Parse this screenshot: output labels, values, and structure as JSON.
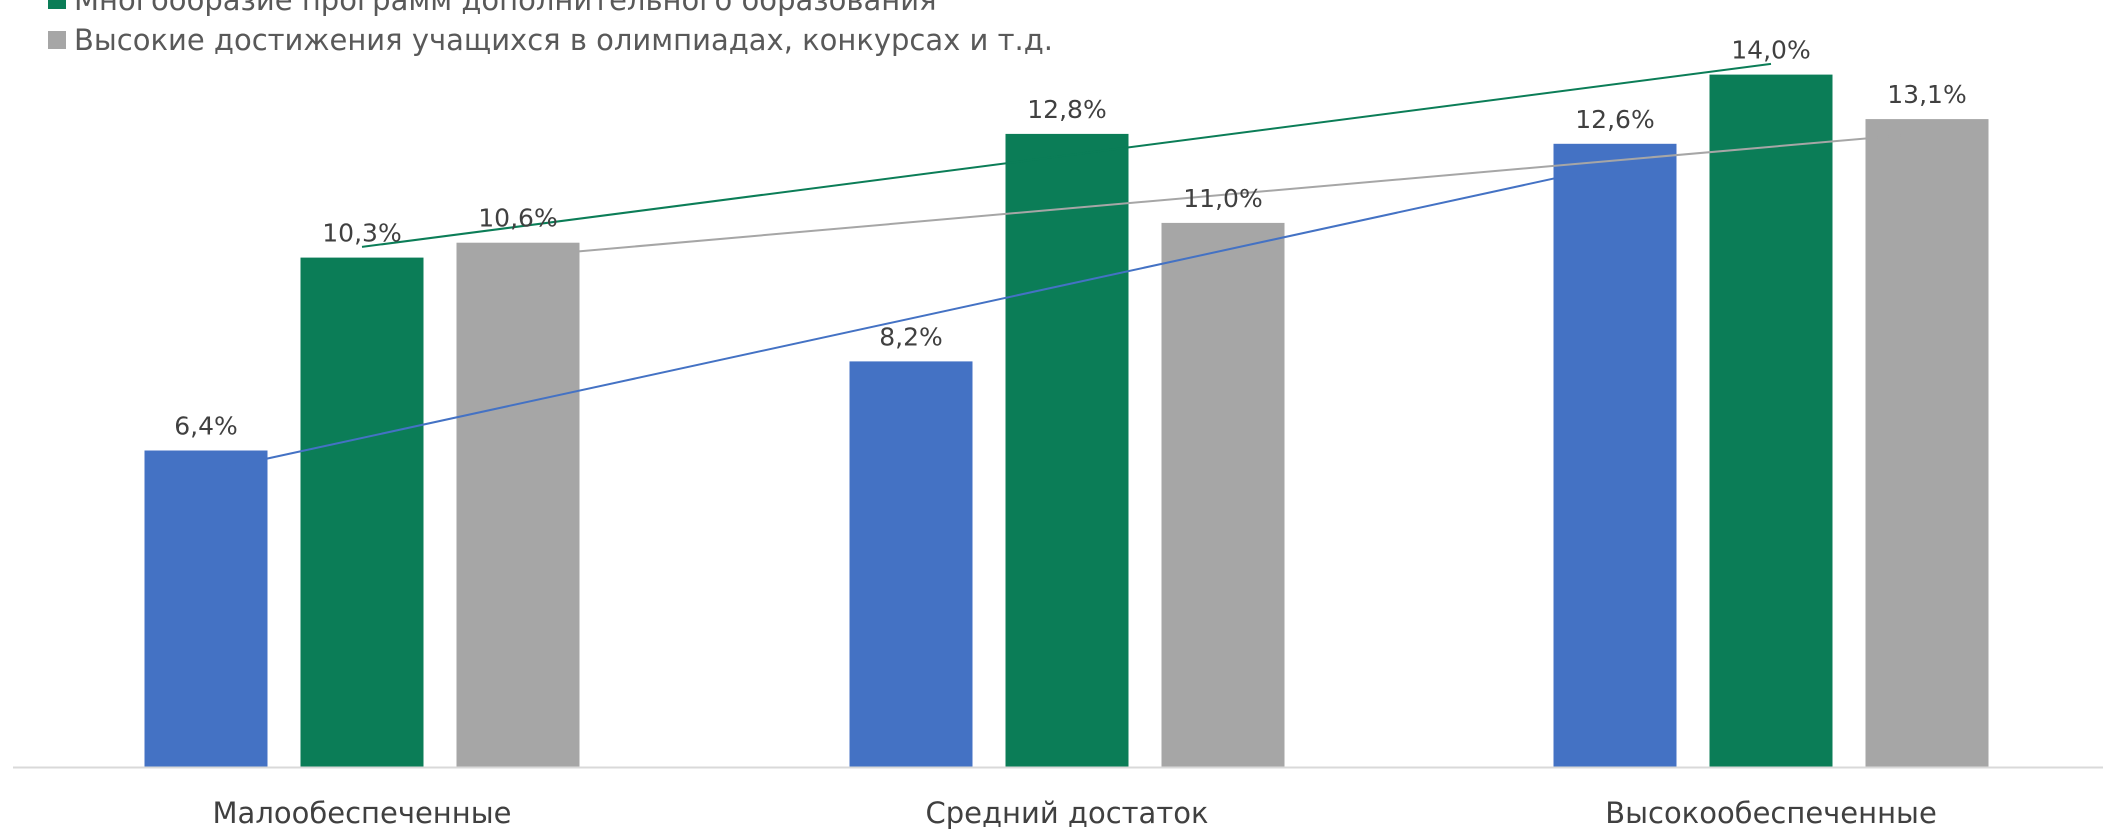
{
  "chart_data": {
    "type": "bar",
    "categories": [
      "Малообеспеченные",
      "Средний достаток",
      "Высокообеспеченные"
    ],
    "series": [
      {
        "name": "",
        "color": "#4472C4",
        "values": [
          6.4,
          8.2,
          12.6
        ],
        "labels": [
          "6,4%",
          "8,2%",
          "12,6%"
        ]
      },
      {
        "name": "Многообразие программ дополнительного образования",
        "color": "#0B7D57",
        "values": [
          10.3,
          12.8,
          14.0
        ],
        "labels": [
          "10,3%",
          "12,8%",
          "14,0%"
        ]
      },
      {
        "name": "Высокие достижения учащихся в олимпиадах, конкурсах и т.д.",
        "color": "#A6A6A6",
        "values": [
          10.6,
          11.0,
          13.1
        ],
        "labels": [
          "10,6%",
          "11,0%",
          "13,1%"
        ]
      }
    ],
    "trendlines": true,
    "ylim": [
      0,
      14.8
    ],
    "grid": false,
    "legend_placement": "top-left",
    "axis_color": "#D9D9D9",
    "label_color": "#404040"
  }
}
